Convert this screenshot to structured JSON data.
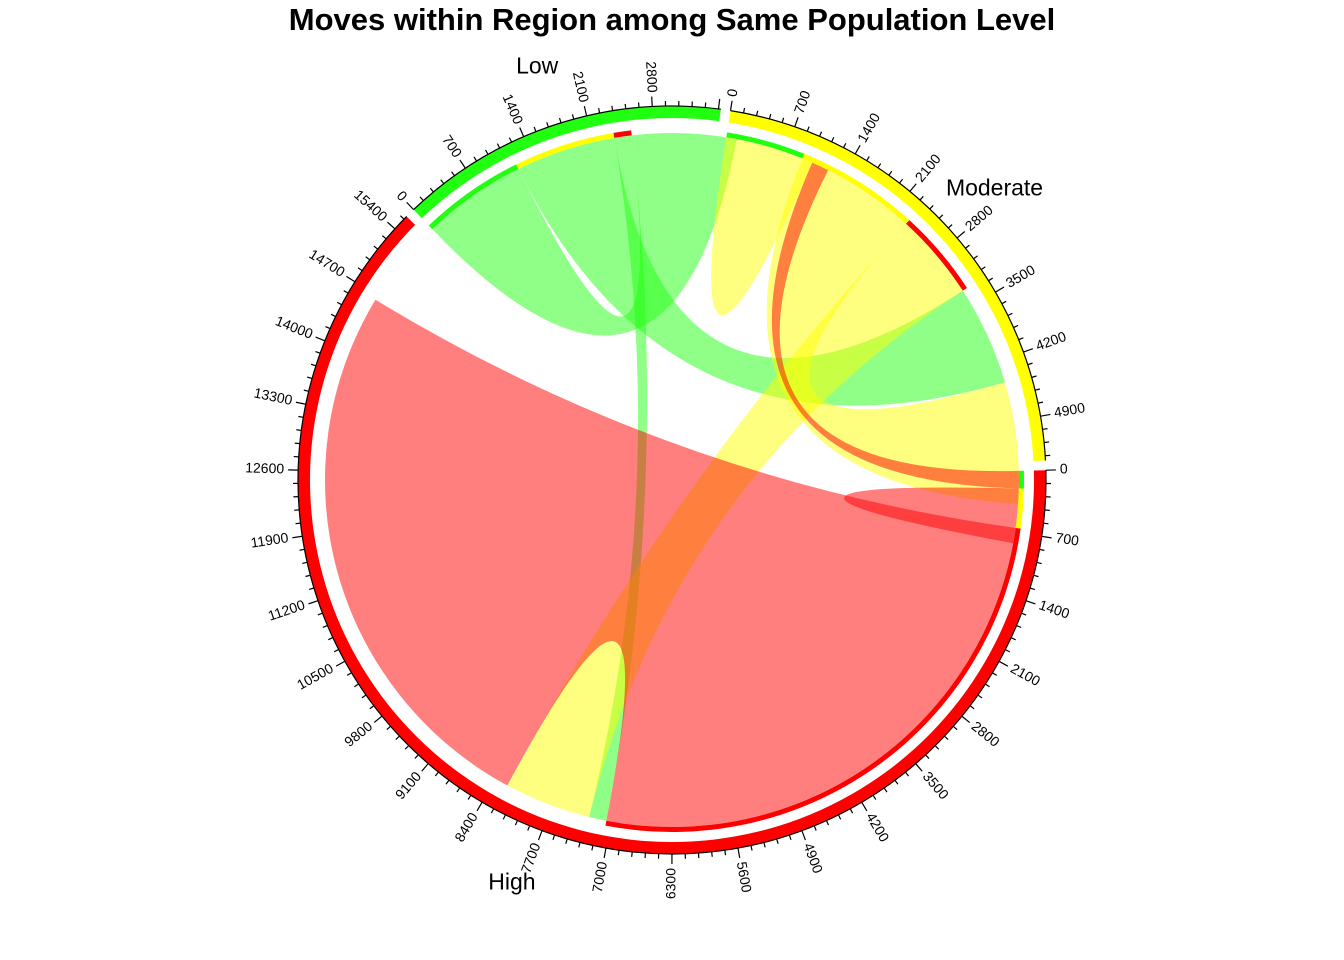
{
  "title": "Moves within Region among Same Population Level",
  "chart_data": {
    "type": "chord",
    "title": "Moves within Region among Same Population Level",
    "sectors": [
      {
        "name": "Low",
        "color": "#21FF11",
        "total": 3525,
        "tick_labels": [
          "0",
          "700",
          "1400",
          "2100",
          "2800"
        ]
      },
      {
        "name": "Moderate",
        "color": "#FFFF00",
        "total": 5370,
        "tick_labels": [
          "0",
          "700",
          "1400",
          "2100",
          "2800",
          "3500",
          "4200",
          "4900"
        ]
      },
      {
        "name": "High",
        "color": "#FF0000",
        "total": 15580,
        "tick_labels": [
          "0",
          "700",
          "1400",
          "2100",
          "2800",
          "3500",
          "4200",
          "4900",
          "5600",
          "6300",
          "7000",
          "7700",
          "8400",
          "9100",
          "9800",
          "10500",
          "11200",
          "11900",
          "12600",
          "13300",
          "14000",
          "14700",
          "15400"
        ]
      }
    ],
    "flows": [
      {
        "from": "Low",
        "to": "Low",
        "value": 1200
      },
      {
        "from": "Low",
        "to": "Moderate",
        "value": 1150
      },
      {
        "from": "Low",
        "to": "High",
        "value": 200
      },
      {
        "from": "Moderate",
        "to": "Low",
        "value": 900
      },
      {
        "from": "Moderate",
        "to": "Moderate",
        "value": 1400
      },
      {
        "from": "Moderate",
        "to": "High",
        "value": 1000
      },
      {
        "from": "High",
        "to": "Low",
        "value": 200
      },
      {
        "from": "High",
        "to": "Moderate",
        "value": 450
      },
      {
        "from": "High",
        "to": "High",
        "value": 6400
      }
    ]
  }
}
